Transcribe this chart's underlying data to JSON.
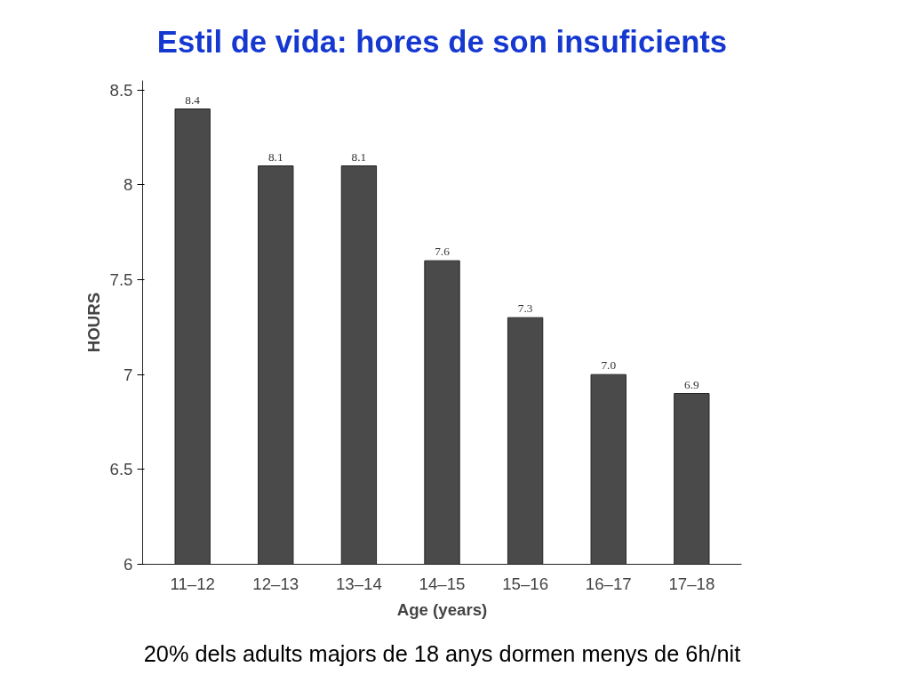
{
  "chart_data": {
    "type": "bar",
    "title": "Estil de vida: hores de son insuficients",
    "categories": [
      "11–12",
      "12–13",
      "13–14",
      "14–15",
      "15–16",
      "16–17",
      "17–18"
    ],
    "values": [
      8.4,
      8.1,
      8.1,
      7.6,
      7.3,
      7.0,
      6.9
    ],
    "value_labels": [
      "8.4",
      "8.1",
      "8.1",
      "7.6",
      "7.3",
      "7.0",
      "6.9"
    ],
    "color": "#4a4a4a",
    "xlabel": "Age (years)",
    "ylabel": "HOURS",
    "ylim": [
      6,
      8.55
    ],
    "yticks": [
      6,
      6.5,
      7,
      7.5,
      8,
      8.5
    ],
    "grid": false,
    "annotations": [
      "20% dels adults majors de 18 anys dormen menys de 6h/nit"
    ]
  }
}
